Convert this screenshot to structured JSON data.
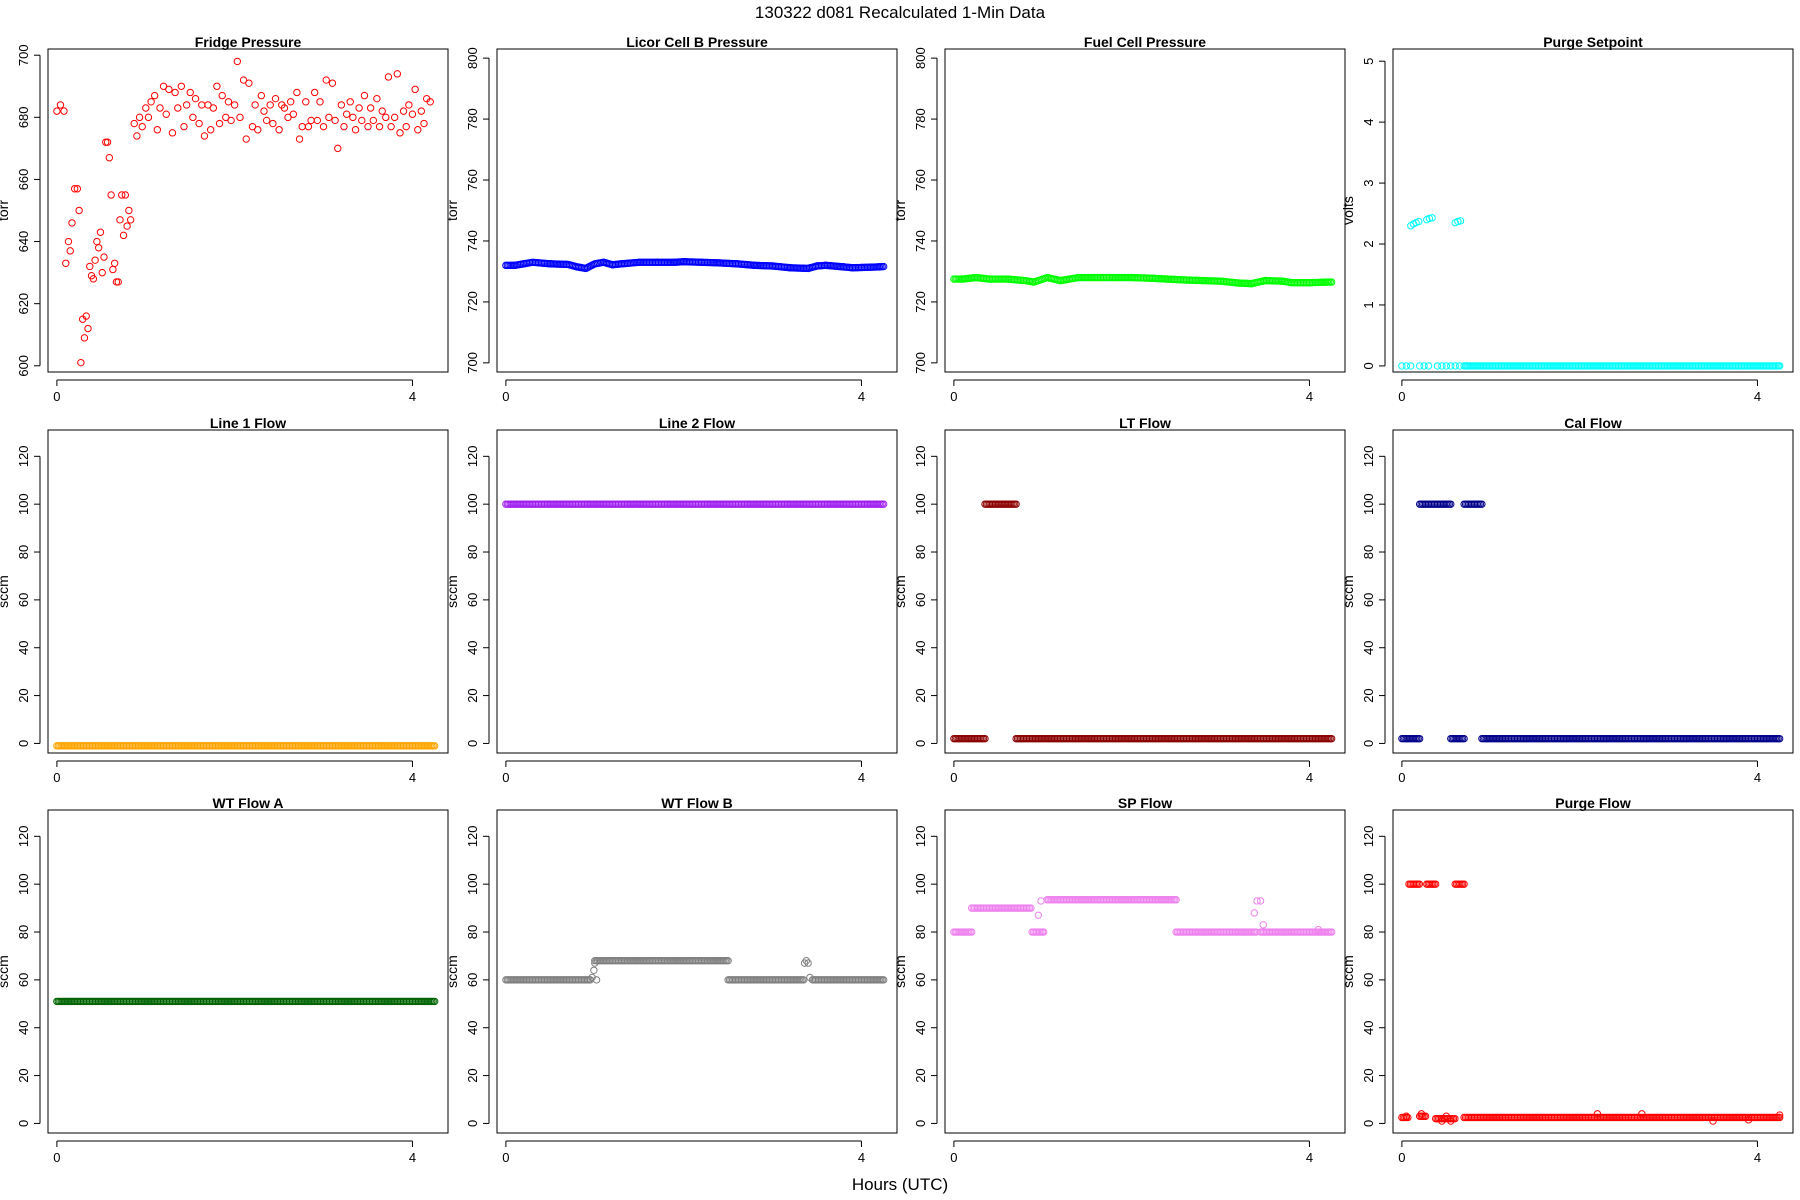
{
  "figure": {
    "title": "130322    d081    Recalculated 1-Min Data",
    "xlabel": "Hours (UTC)"
  },
  "chart_data": [
    {
      "type": "scatter",
      "title": "Fridge Pressure",
      "ylabel": "torr",
      "color": "#ff0000",
      "xlim": [
        -0.1,
        4.4
      ],
      "xticks": [
        0,
        4
      ],
      "ylim": [
        598,
        702
      ],
      "yticks": [
        600,
        620,
        640,
        660,
        680,
        700
      ],
      "points": [
        [
          0.0,
          682
        ],
        [
          0.04,
          684
        ],
        [
          0.08,
          682
        ],
        [
          0.1,
          633
        ],
        [
          0.13,
          640
        ],
        [
          0.15,
          637
        ],
        [
          0.17,
          646
        ],
        [
          0.2,
          657
        ],
        [
          0.23,
          657
        ],
        [
          0.25,
          650
        ],
        [
          0.27,
          601
        ],
        [
          0.29,
          615
        ],
        [
          0.31,
          609
        ],
        [
          0.33,
          616
        ],
        [
          0.35,
          612
        ],
        [
          0.37,
          632
        ],
        [
          0.39,
          629
        ],
        [
          0.41,
          628
        ],
        [
          0.43,
          634
        ],
        [
          0.45,
          640
        ],
        [
          0.47,
          638
        ],
        [
          0.49,
          643
        ],
        [
          0.51,
          630
        ],
        [
          0.53,
          635
        ],
        [
          0.55,
          672
        ],
        [
          0.57,
          672
        ],
        [
          0.59,
          667
        ],
        [
          0.61,
          655
        ],
        [
          0.63,
          631
        ],
        [
          0.65,
          633
        ],
        [
          0.67,
          627
        ],
        [
          0.69,
          627
        ],
        [
          0.71,
          647
        ],
        [
          0.73,
          655
        ],
        [
          0.75,
          642
        ],
        [
          0.77,
          655
        ],
        [
          0.79,
          645
        ],
        [
          0.81,
          650
        ],
        [
          0.83,
          647
        ],
        [
          0.87,
          678
        ],
        [
          0.9,
          674
        ],
        [
          0.93,
          680
        ],
        [
          0.96,
          677
        ],
        [
          1.0,
          683
        ],
        [
          1.03,
          680
        ],
        [
          1.06,
          685
        ],
        [
          1.1,
          687
        ],
        [
          1.13,
          676
        ],
        [
          1.16,
          683
        ],
        [
          1.2,
          690
        ],
        [
          1.23,
          681
        ],
        [
          1.26,
          689
        ],
        [
          1.3,
          675
        ],
        [
          1.33,
          688
        ],
        [
          1.36,
          683
        ],
        [
          1.4,
          690
        ],
        [
          1.43,
          677
        ],
        [
          1.46,
          684
        ],
        [
          1.5,
          688
        ],
        [
          1.53,
          680
        ],
        [
          1.56,
          686
        ],
        [
          1.6,
          678
        ],
        [
          1.63,
          684
        ],
        [
          1.66,
          674
        ],
        [
          1.7,
          684
        ],
        [
          1.73,
          676
        ],
        [
          1.76,
          683
        ],
        [
          1.8,
          690
        ],
        [
          1.83,
          678
        ],
        [
          1.86,
          687
        ],
        [
          1.9,
          680
        ],
        [
          1.93,
          685
        ],
        [
          1.96,
          679
        ],
        [
          2.0,
          684
        ],
        [
          2.03,
          698
        ],
        [
          2.06,
          680
        ],
        [
          2.1,
          692
        ],
        [
          2.13,
          673
        ],
        [
          2.16,
          691
        ],
        [
          2.2,
          677
        ],
        [
          2.23,
          684
        ],
        [
          2.26,
          676
        ],
        [
          2.3,
          687
        ],
        [
          2.33,
          682
        ],
        [
          2.36,
          679
        ],
        [
          2.4,
          684
        ],
        [
          2.43,
          678
        ],
        [
          2.46,
          686
        ],
        [
          2.5,
          676
        ],
        [
          2.53,
          684
        ],
        [
          2.56,
          683
        ],
        [
          2.6,
          680
        ],
        [
          2.63,
          685
        ],
        [
          2.66,
          681
        ],
        [
          2.7,
          688
        ],
        [
          2.73,
          673
        ],
        [
          2.76,
          677
        ],
        [
          2.8,
          685
        ],
        [
          2.83,
          677
        ],
        [
          2.86,
          679
        ],
        [
          2.9,
          688
        ],
        [
          2.93,
          679
        ],
        [
          2.96,
          685
        ],
        [
          3.0,
          677
        ],
        [
          3.03,
          692
        ],
        [
          3.06,
          680
        ],
        [
          3.1,
          691
        ],
        [
          3.13,
          679
        ],
        [
          3.16,
          670
        ],
        [
          3.2,
          684
        ],
        [
          3.23,
          677
        ],
        [
          3.26,
          681
        ],
        [
          3.3,
          685
        ],
        [
          3.33,
          680
        ],
        [
          3.36,
          676
        ],
        [
          3.4,
          683
        ],
        [
          3.43,
          679
        ],
        [
          3.46,
          687
        ],
        [
          3.5,
          677
        ],
        [
          3.53,
          683
        ],
        [
          3.56,
          679
        ],
        [
          3.6,
          686
        ],
        [
          3.63,
          677
        ],
        [
          3.66,
          682
        ],
        [
          3.7,
          680
        ],
        [
          3.73,
          693
        ],
        [
          3.76,
          677
        ],
        [
          3.8,
          680
        ],
        [
          3.83,
          694
        ],
        [
          3.86,
          675
        ],
        [
          3.9,
          682
        ],
        [
          3.93,
          677
        ],
        [
          3.96,
          684
        ],
        [
          4.0,
          681
        ],
        [
          4.03,
          689
        ],
        [
          4.06,
          676
        ],
        [
          4.1,
          682
        ],
        [
          4.13,
          678
        ],
        [
          4.16,
          686
        ],
        [
          4.2,
          685
        ]
      ]
    },
    {
      "type": "scatter",
      "title": "Licor Cell B Pressure",
      "ylabel": "torr",
      "color": "#0000ff",
      "xlim": [
        -0.1,
        4.4
      ],
      "xticks": [
        0,
        4
      ],
      "ylim": [
        697,
        803
      ],
      "yticks": [
        700,
        720,
        740,
        760,
        780,
        800
      ],
      "points": [
        [
          0.0,
          732
        ],
        [
          0.1,
          732
        ],
        [
          0.2,
          732.5
        ],
        [
          0.3,
          733
        ],
        [
          0.5,
          732.5
        ],
        [
          0.7,
          732.3
        ],
        [
          0.8,
          731.5
        ],
        [
          0.9,
          731
        ],
        [
          1.0,
          732.5
        ],
        [
          1.1,
          733
        ],
        [
          1.2,
          732.2
        ],
        [
          1.3,
          732.5
        ],
        [
          1.5,
          733
        ],
        [
          1.7,
          733
        ],
        [
          1.9,
          733
        ],
        [
          2.0,
          733.2
        ],
        [
          2.2,
          733
        ],
        [
          2.4,
          732.8
        ],
        [
          2.6,
          732.5
        ],
        [
          2.8,
          732
        ],
        [
          3.0,
          731.8
        ],
        [
          3.2,
          731.2
        ],
        [
          3.4,
          731
        ],
        [
          3.5,
          731.8
        ],
        [
          3.6,
          732
        ],
        [
          3.8,
          731.5
        ],
        [
          3.9,
          731.2
        ],
        [
          4.0,
          731.3
        ],
        [
          4.2,
          731.5
        ],
        [
          4.25,
          731.6
        ]
      ],
      "dense": true
    },
    {
      "type": "scatter",
      "title": "Fuel Cell Pressure",
      "ylabel": "torr",
      "color": "#00ff00",
      "xlim": [
        -0.1,
        4.4
      ],
      "xticks": [
        0,
        4
      ],
      "ylim": [
        697,
        803
      ],
      "yticks": [
        700,
        720,
        740,
        760,
        780,
        800
      ],
      "points": [
        [
          0.0,
          727.5
        ],
        [
          0.1,
          727.5
        ],
        [
          0.25,
          728
        ],
        [
          0.4,
          727.5
        ],
        [
          0.6,
          727.5
        ],
        [
          0.8,
          727
        ],
        [
          0.9,
          726.5
        ],
        [
          1.05,
          728
        ],
        [
          1.2,
          727
        ],
        [
          1.4,
          728
        ],
        [
          1.6,
          728
        ],
        [
          1.8,
          728
        ],
        [
          2.0,
          728
        ],
        [
          2.2,
          727.8
        ],
        [
          2.4,
          727.5
        ],
        [
          2.6,
          727.2
        ],
        [
          2.8,
          727
        ],
        [
          3.0,
          726.8
        ],
        [
          3.2,
          726.2
        ],
        [
          3.35,
          726
        ],
        [
          3.5,
          727
        ],
        [
          3.7,
          726.8
        ],
        [
          3.8,
          726.3
        ],
        [
          4.0,
          726.3
        ],
        [
          4.2,
          726.5
        ],
        [
          4.25,
          726.5
        ]
      ],
      "dense": true
    },
    {
      "type": "scatter",
      "title": "Purge Setpoint",
      "ylabel": "volts",
      "color": "#00ffff",
      "xlim": [
        -0.1,
        4.4
      ],
      "xticks": [
        0,
        4
      ],
      "ylim": [
        -0.1,
        5.2
      ],
      "yticks": [
        0,
        1,
        2,
        3,
        4,
        5
      ],
      "points": [
        [
          0.0,
          0
        ],
        [
          0.05,
          0
        ],
        [
          0.1,
          0
        ],
        [
          0.2,
          0
        ],
        [
          0.25,
          0
        ],
        [
          0.3,
          0
        ],
        [
          0.4,
          0
        ],
        [
          0.45,
          0
        ],
        [
          0.5,
          0
        ],
        [
          0.55,
          0
        ],
        [
          0.6,
          0
        ],
        [
          0.65,
          0
        ],
        [
          0.7,
          0
        ],
        [
          0.1,
          2.3
        ],
        [
          0.13,
          2.33
        ],
        [
          0.16,
          2.35
        ],
        [
          0.19,
          2.37
        ],
        [
          0.28,
          2.4
        ],
        [
          0.31,
          2.42
        ],
        [
          0.34,
          2.43
        ],
        [
          0.6,
          2.35
        ],
        [
          0.63,
          2.37
        ],
        [
          0.66,
          2.38
        ],
        [
          0.72,
          0
        ],
        [
          4.25,
          0
        ]
      ],
      "dense_segments": [
        [
          0.72,
          4.25,
          0
        ]
      ]
    },
    {
      "type": "scatter",
      "title": "Line 1 Flow",
      "ylabel": "sccm",
      "color": "#ffa500",
      "xlim": [
        -0.1,
        4.4
      ],
      "xticks": [
        0,
        4
      ],
      "ylim": [
        -4,
        131
      ],
      "yticks": [
        0,
        20,
        40,
        60,
        80,
        100,
        120
      ],
      "dense_segments": [
        [
          0.0,
          4.25,
          -1
        ]
      ]
    },
    {
      "type": "scatter",
      "title": "Line 2 Flow",
      "ylabel": "sccm",
      "color": "#a020f0",
      "xlim": [
        -0.1,
        4.4
      ],
      "xticks": [
        0,
        4
      ],
      "ylim": [
        -4,
        131
      ],
      "yticks": [
        0,
        20,
        40,
        60,
        80,
        100,
        120
      ],
      "dense_segments": [
        [
          0.0,
          4.25,
          100
        ]
      ]
    },
    {
      "type": "scatter",
      "title": "LT Flow",
      "ylabel": "sccm",
      "color": "#8b0000",
      "xlim": [
        -0.1,
        4.4
      ],
      "xticks": [
        0,
        4
      ],
      "ylim": [
        -4,
        131
      ],
      "yticks": [
        0,
        20,
        40,
        60,
        80,
        100,
        120
      ],
      "dense_segments": [
        [
          0.0,
          0.35,
          2
        ],
        [
          0.35,
          0.7,
          100
        ],
        [
          0.7,
          4.25,
          2
        ]
      ]
    },
    {
      "type": "scatter",
      "title": "Cal Flow",
      "ylabel": "sccm",
      "color": "#00008b",
      "xlim": [
        -0.1,
        4.4
      ],
      "xticks": [
        0,
        4
      ],
      "ylim": [
        -4,
        131
      ],
      "yticks": [
        0,
        20,
        40,
        60,
        80,
        100,
        120
      ],
      "dense_segments": [
        [
          0.0,
          0.2,
          2
        ],
        [
          0.2,
          0.55,
          100
        ],
        [
          0.55,
          0.7,
          2
        ],
        [
          0.7,
          0.9,
          100
        ],
        [
          0.9,
          4.25,
          2
        ]
      ]
    },
    {
      "type": "scatter",
      "title": "WT Flow A",
      "ylabel": "sccm",
      "color": "#006400",
      "xlim": [
        -0.1,
        4.4
      ],
      "xticks": [
        0,
        4
      ],
      "ylim": [
        -4,
        131
      ],
      "yticks": [
        0,
        20,
        40,
        60,
        80,
        100,
        120
      ],
      "dense_segments": [
        [
          0.0,
          4.25,
          51
        ]
      ]
    },
    {
      "type": "scatter",
      "title": "WT Flow B",
      "ylabel": "sccm",
      "color": "#808080",
      "xlim": [
        -0.1,
        4.4
      ],
      "xticks": [
        0,
        4
      ],
      "ylim": [
        -4,
        131
      ],
      "yticks": [
        0,
        20,
        40,
        60,
        80,
        100,
        120
      ],
      "dense_segments": [
        [
          0.0,
          0.95,
          60
        ],
        [
          1.0,
          2.5,
          68
        ],
        [
          2.5,
          3.35,
          60
        ],
        [
          3.45,
          4.25,
          60
        ]
      ],
      "points": [
        [
          0.97,
          61
        ],
        [
          0.99,
          64
        ],
        [
          1.0,
          67
        ],
        [
          1.02,
          60
        ],
        [
          3.36,
          67
        ],
        [
          3.38,
          68
        ],
        [
          3.4,
          67
        ],
        [
          3.42,
          61
        ]
      ]
    },
    {
      "type": "scatter",
      "title": "SP Flow",
      "ylabel": "sccm",
      "color": "#ee82ee",
      "xlim": [
        -0.1,
        4.4
      ],
      "xticks": [
        0,
        4
      ],
      "ylim": [
        -4,
        131
      ],
      "yticks": [
        0,
        20,
        40,
        60,
        80,
        100,
        120
      ],
      "dense_segments": [
        [
          0.0,
          0.2,
          80
        ],
        [
          0.2,
          0.88,
          90
        ],
        [
          0.88,
          1.0,
          80
        ],
        [
          1.05,
          2.5,
          93.5
        ],
        [
          2.5,
          3.4,
          80
        ],
        [
          3.45,
          4.25,
          80
        ]
      ],
      "points": [
        [
          0.95,
          87
        ],
        [
          0.98,
          93
        ],
        [
          1.01,
          80
        ],
        [
          3.38,
          88
        ],
        [
          3.41,
          93
        ],
        [
          3.45,
          93
        ],
        [
          3.48,
          83
        ],
        [
          4.1,
          81
        ]
      ]
    },
    {
      "type": "scatter",
      "title": "Purge Flow",
      "ylabel": "sccm",
      "color": "#ff0000",
      "xlim": [
        -0.1,
        4.4
      ],
      "xticks": [
        0,
        4
      ],
      "ylim": [
        -4,
        131
      ],
      "yticks": [
        0,
        20,
        40,
        60,
        80,
        100,
        120
      ],
      "dense_segments": [
        [
          0.0,
          0.08,
          2.5
        ],
        [
          0.08,
          0.2,
          100
        ],
        [
          0.2,
          0.28,
          3
        ],
        [
          0.28,
          0.38,
          100
        ],
        [
          0.38,
          0.6,
          2
        ],
        [
          0.6,
          0.7,
          100
        ],
        [
          0.7,
          4.25,
          2.5
        ]
      ],
      "points": [
        [
          0.05,
          3
        ],
        [
          0.22,
          4
        ],
        [
          0.45,
          1
        ],
        [
          0.5,
          3
        ],
        [
          0.55,
          1
        ],
        [
          2.2,
          4
        ],
        [
          2.7,
          4
        ],
        [
          3.5,
          1
        ],
        [
          3.9,
          1.5
        ],
        [
          4.25,
          3.5
        ]
      ]
    }
  ]
}
